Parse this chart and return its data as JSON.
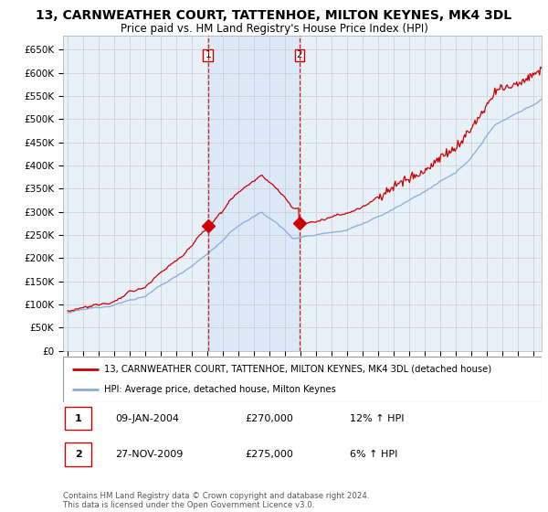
{
  "title": "13, CARNWEATHER COURT, TATTENHOE, MILTON KEYNES, MK4 3DL",
  "subtitle": "Price paid vs. HM Land Registry's House Price Index (HPI)",
  "legend_line1": "13, CARNWEATHER COURT, TATTENHOE, MILTON KEYNES, MK4 3DL (detached house)",
  "legend_line2": "HPI: Average price, detached house, Milton Keynes",
  "annotation1_label": "1",
  "annotation1_date": "09-JAN-2004",
  "annotation1_price": "£270,000",
  "annotation1_hpi": "12% ↑ HPI",
  "annotation2_label": "2",
  "annotation2_date": "27-NOV-2009",
  "annotation2_price": "£275,000",
  "annotation2_hpi": "6% ↑ HPI",
  "copyright": "Contains HM Land Registry data © Crown copyright and database right 2024.\nThis data is licensed under the Open Government Licence v3.0.",
  "sale1_year": 2004.03,
  "sale1_price": 270000,
  "sale2_year": 2009.92,
  "sale2_price": 275000,
  "ylim": [
    0,
    680000
  ],
  "xlim_start": 1994.7,
  "xlim_end": 2025.5,
  "plot_bg_color": "#e8f0f8",
  "grid_color": "#cccccc",
  "red_line_color": "#cc0000",
  "blue_line_color": "#88aadd",
  "vline_color": "#cc0000",
  "sale_marker_color": "#cc0000",
  "title_fontsize": 10,
  "subtitle_fontsize": 8.5,
  "span_color": "#d0e4f8",
  "span_alpha": 0.5
}
